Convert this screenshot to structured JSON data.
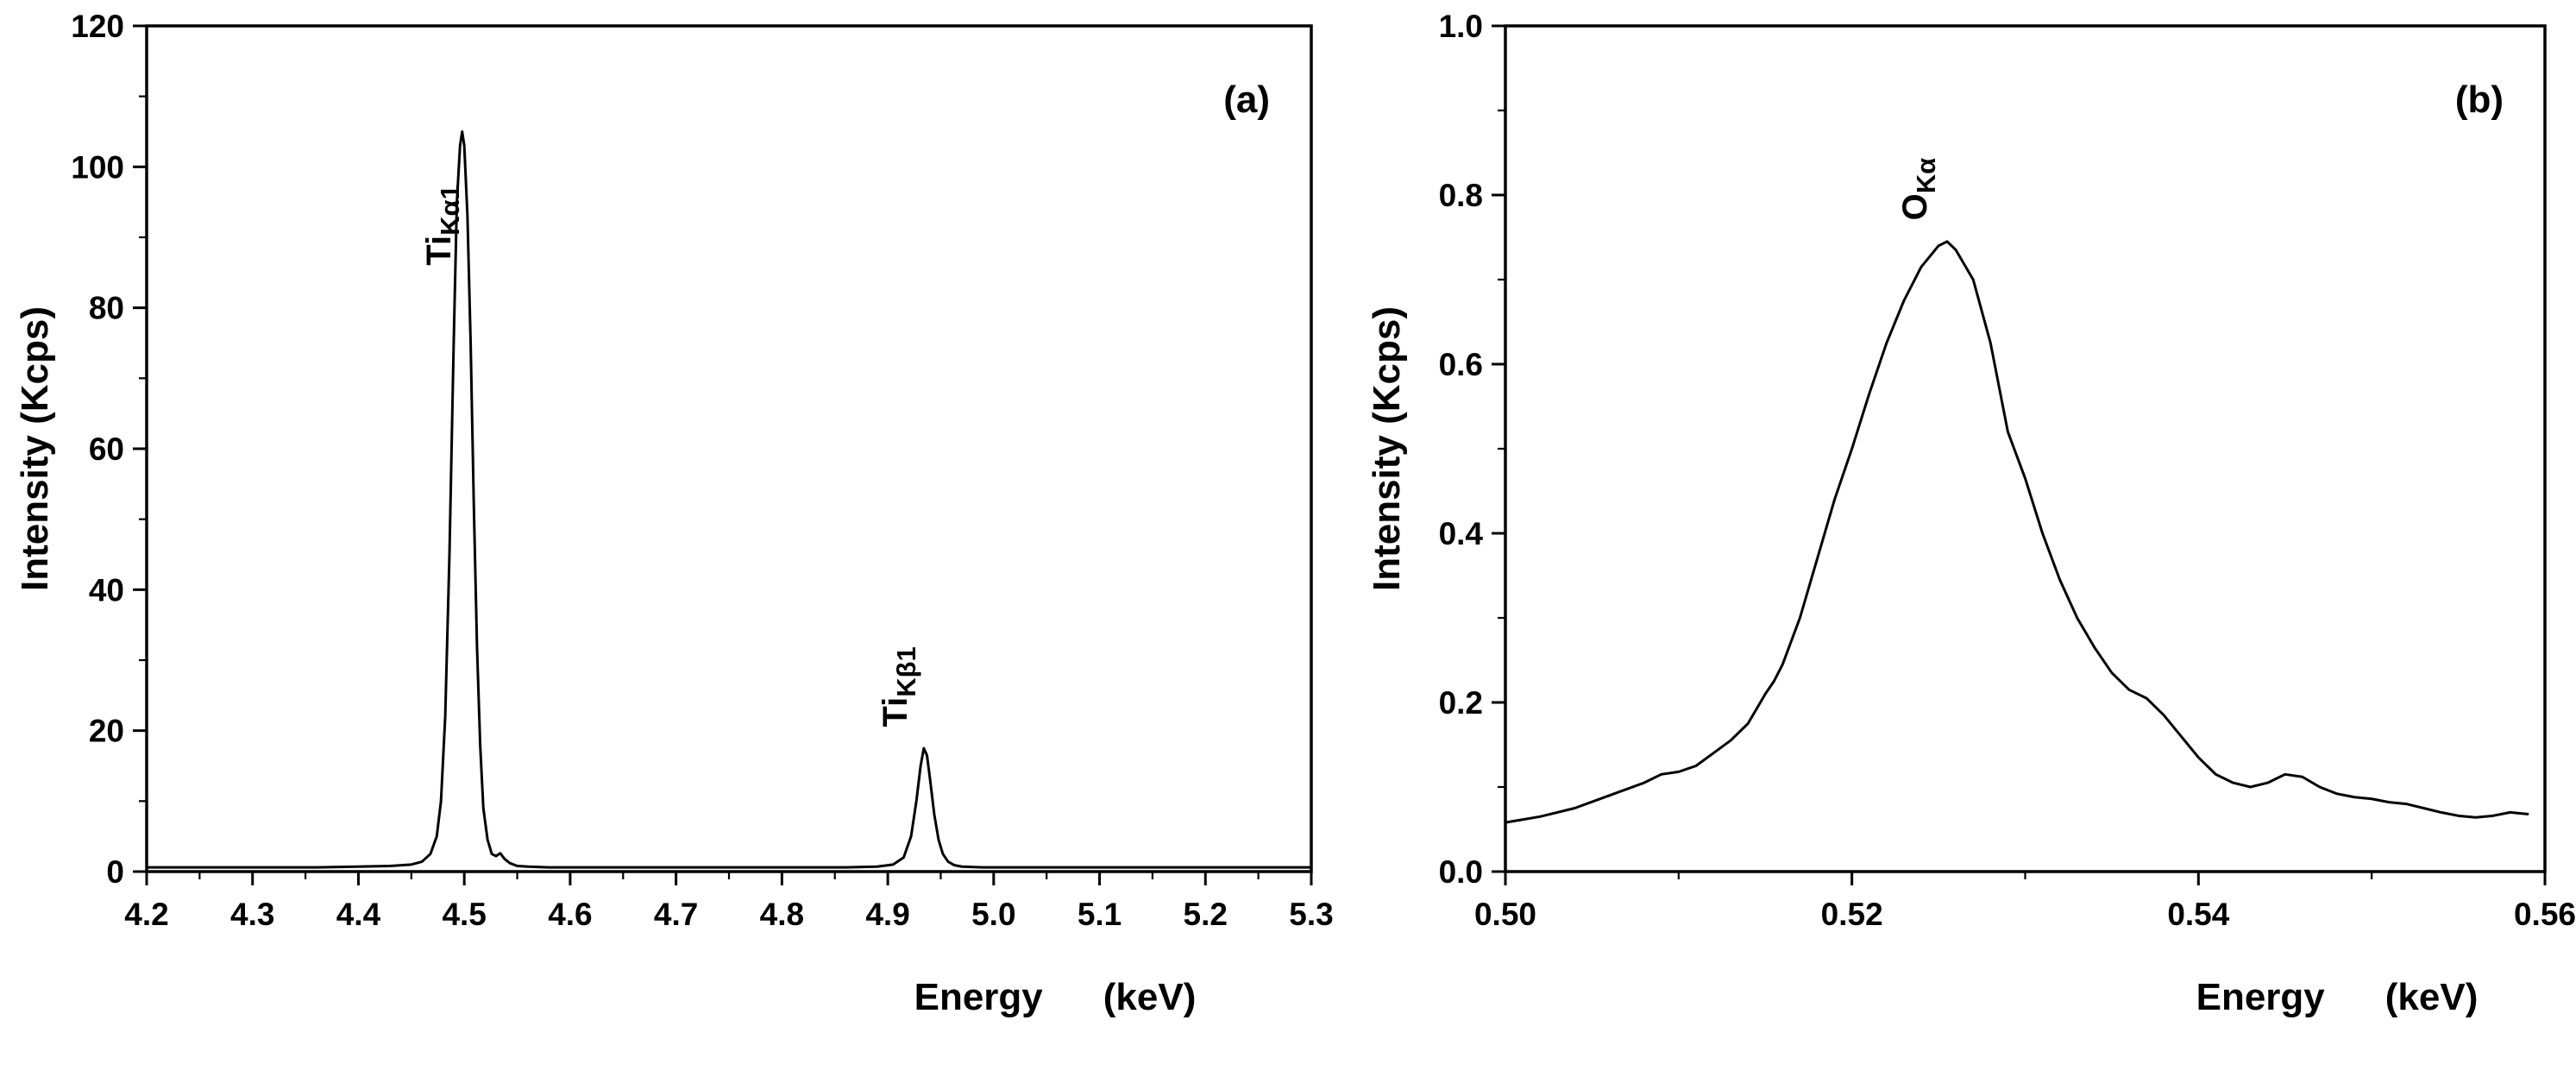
{
  "page": {
    "background": "#ffffff",
    "ink_color": "#000000"
  },
  "chart_data": [
    {
      "id": "panel-a",
      "type": "line",
      "panel_label": "(a)",
      "xlabel": "Energy",
      "xlabel_unit": "(keV)",
      "ylabel": "Intensity (Kcps)",
      "xlim": [
        4.2,
        5.3
      ],
      "ylim": [
        0,
        120
      ],
      "grid": false,
      "legend": "none",
      "x_ticks": {
        "values": [
          4.2,
          4.3,
          4.4,
          4.5,
          4.6,
          4.7,
          4.8,
          4.9,
          5.0,
          5.1,
          5.2,
          5.3
        ],
        "labels": [
          "4.2",
          "4.3",
          "4.4",
          "4.5",
          "4.6",
          "4.7",
          "4.8",
          "4.9",
          "5.0",
          "5.1",
          "5.2",
          "5.3"
        ],
        "minor_step": 0.05
      },
      "y_ticks": {
        "values": [
          0,
          20,
          40,
          60,
          80,
          100,
          120
        ],
        "labels": [
          "0",
          "20",
          "40",
          "60",
          "80",
          "100",
          "120"
        ],
        "minor_step": 10
      },
      "line": {
        "color": "#000000",
        "width": 3
      },
      "annotations": [
        {
          "main": "Ti",
          "sub": "Kα1",
          "x": 4.487,
          "y": 86
        },
        {
          "main": "Ti",
          "sub": "Kβ1",
          "x": 4.918,
          "y": 20.5
        }
      ],
      "points": [
        [
          4.2,
          0.6
        ],
        [
          4.24,
          0.6
        ],
        [
          4.28,
          0.6
        ],
        [
          4.32,
          0.6
        ],
        [
          4.36,
          0.6
        ],
        [
          4.4,
          0.7
        ],
        [
          4.43,
          0.8
        ],
        [
          4.45,
          1.0
        ],
        [
          4.46,
          1.4
        ],
        [
          4.468,
          2.5
        ],
        [
          4.474,
          5.0
        ],
        [
          4.478,
          10.0
        ],
        [
          4.482,
          22.0
        ],
        [
          4.486,
          45.0
        ],
        [
          4.49,
          75.0
        ],
        [
          4.493,
          95.0
        ],
        [
          4.496,
          103.0
        ],
        [
          4.498,
          105.0
        ],
        [
          4.5,
          103.0
        ],
        [
          4.503,
          93.0
        ],
        [
          4.506,
          75.0
        ],
        [
          4.509,
          52.0
        ],
        [
          4.512,
          32.0
        ],
        [
          4.515,
          18.0
        ],
        [
          4.518,
          9.0
        ],
        [
          4.522,
          4.5
        ],
        [
          4.526,
          2.5
        ],
        [
          4.53,
          2.2
        ],
        [
          4.534,
          2.6
        ],
        [
          4.538,
          1.8
        ],
        [
          4.543,
          1.2
        ],
        [
          4.55,
          0.8
        ],
        [
          4.56,
          0.7
        ],
        [
          4.58,
          0.6
        ],
        [
          4.62,
          0.6
        ],
        [
          4.66,
          0.6
        ],
        [
          4.7,
          0.6
        ],
        [
          4.74,
          0.6
        ],
        [
          4.78,
          0.6
        ],
        [
          4.82,
          0.6
        ],
        [
          4.86,
          0.6
        ],
        [
          4.89,
          0.7
        ],
        [
          4.905,
          1.0
        ],
        [
          4.915,
          2.0
        ],
        [
          4.922,
          5.0
        ],
        [
          4.927,
          10.0
        ],
        [
          4.931,
          15.0
        ],
        [
          4.934,
          17.5
        ],
        [
          4.937,
          16.5
        ],
        [
          4.94,
          13.0
        ],
        [
          4.944,
          8.0
        ],
        [
          4.948,
          4.5
        ],
        [
          4.952,
          2.5
        ],
        [
          4.957,
          1.4
        ],
        [
          4.963,
          0.9
        ],
        [
          4.97,
          0.7
        ],
        [
          4.99,
          0.6
        ],
        [
          5.02,
          0.6
        ],
        [
          5.06,
          0.6
        ],
        [
          5.1,
          0.6
        ],
        [
          5.14,
          0.6
        ],
        [
          5.18,
          0.6
        ],
        [
          5.22,
          0.6
        ],
        [
          5.26,
          0.6
        ],
        [
          5.3,
          0.6
        ]
      ]
    },
    {
      "id": "panel-b",
      "type": "line",
      "panel_label": "(b)",
      "xlabel": "Energy",
      "xlabel_unit": "(keV)",
      "ylabel": "Intensity (Kcps)",
      "xlim": [
        0.5,
        0.56
      ],
      "ylim": [
        0.0,
        1.0
      ],
      "grid": false,
      "legend": "none",
      "x_ticks": {
        "values": [
          0.5,
          0.52,
          0.54,
          0.56
        ],
        "labels": [
          "0.50",
          "0.52",
          "0.54",
          "0.56"
        ],
        "minor_step": 0.01
      },
      "y_ticks": {
        "values": [
          0.0,
          0.2,
          0.4,
          0.6,
          0.8,
          1.0
        ],
        "labels": [
          "0.0",
          "0.2",
          "0.4",
          "0.6",
          "0.8",
          "1.0"
        ],
        "minor_step": 0.1
      },
      "line": {
        "color": "#000000",
        "width": 3
      },
      "annotations": [
        {
          "main": "O",
          "sub": "Kα",
          "x": 0.5243,
          "y": 0.77
        }
      ],
      "points": [
        [
          0.5,
          0.058
        ],
        [
          0.502,
          0.065
        ],
        [
          0.504,
          0.075
        ],
        [
          0.506,
          0.09
        ],
        [
          0.508,
          0.105
        ],
        [
          0.509,
          0.115
        ],
        [
          0.51,
          0.118
        ],
        [
          0.511,
          0.125
        ],
        [
          0.512,
          0.14
        ],
        [
          0.513,
          0.155
        ],
        [
          0.514,
          0.175
        ],
        [
          0.515,
          0.21
        ],
        [
          0.5155,
          0.225
        ],
        [
          0.516,
          0.245
        ],
        [
          0.517,
          0.3
        ],
        [
          0.518,
          0.37
        ],
        [
          0.519,
          0.44
        ],
        [
          0.52,
          0.5
        ],
        [
          0.521,
          0.565
        ],
        [
          0.522,
          0.625
        ],
        [
          0.523,
          0.675
        ],
        [
          0.524,
          0.715
        ],
        [
          0.525,
          0.74
        ],
        [
          0.5255,
          0.745
        ],
        [
          0.526,
          0.735
        ],
        [
          0.527,
          0.7
        ],
        [
          0.528,
          0.625
        ],
        [
          0.529,
          0.52
        ],
        [
          0.53,
          0.465
        ],
        [
          0.531,
          0.4
        ],
        [
          0.532,
          0.345
        ],
        [
          0.533,
          0.3
        ],
        [
          0.534,
          0.265
        ],
        [
          0.535,
          0.235
        ],
        [
          0.536,
          0.215
        ],
        [
          0.537,
          0.205
        ],
        [
          0.538,
          0.185
        ],
        [
          0.539,
          0.16
        ],
        [
          0.54,
          0.135
        ],
        [
          0.541,
          0.115
        ],
        [
          0.542,
          0.105
        ],
        [
          0.543,
          0.1
        ],
        [
          0.544,
          0.105
        ],
        [
          0.545,
          0.115
        ],
        [
          0.546,
          0.112
        ],
        [
          0.547,
          0.1
        ],
        [
          0.548,
          0.092
        ],
        [
          0.549,
          0.088
        ],
        [
          0.55,
          0.086
        ],
        [
          0.551,
          0.082
        ],
        [
          0.552,
          0.08
        ],
        [
          0.553,
          0.075
        ],
        [
          0.554,
          0.07
        ],
        [
          0.555,
          0.066
        ],
        [
          0.556,
          0.064
        ],
        [
          0.557,
          0.066
        ],
        [
          0.558,
          0.07
        ],
        [
          0.559,
          0.068
        ]
      ]
    }
  ]
}
